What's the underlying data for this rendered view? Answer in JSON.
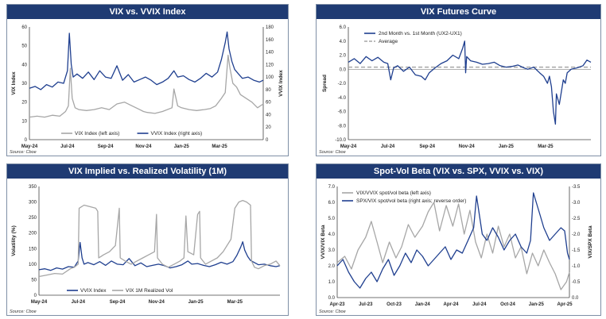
{
  "chart_data": [
    {
      "id": "p1",
      "type": "line",
      "title": "VIX vs. VVIX Index",
      "source": "Source: Cboe",
      "ylabel": "VIX Index",
      "y2label": "VVIX Index",
      "ylim": [
        0,
        60
      ],
      "y2lim": [
        0,
        180
      ],
      "yticks": [
        0,
        10,
        20,
        30,
        40,
        50,
        60
      ],
      "y2ticks": [
        0,
        20,
        40,
        60,
        80,
        100,
        120,
        140,
        160,
        180
      ],
      "xlim": [
        0,
        12.3
      ],
      "xticks": [
        {
          "x": 0,
          "label": "May-24"
        },
        {
          "x": 2,
          "label": "Jul-24"
        },
        {
          "x": 4,
          "label": "Sep-24"
        },
        {
          "x": 6,
          "label": "Nov-24"
        },
        {
          "x": 8,
          "label": "Jan-25"
        },
        {
          "x": 10,
          "label": "Mar-25"
        }
      ],
      "legend_position": "bottom",
      "series": [
        {
          "name": "VIX Index (left axis)",
          "axis": "left",
          "color": "#a6a6a6",
          "x": [
            0,
            0.4,
            0.8,
            1.2,
            1.6,
            1.9,
            2.05,
            2.15,
            2.25,
            2.4,
            2.6,
            3.0,
            3.4,
            3.8,
            4.2,
            4.6,
            5.0,
            5.4,
            5.8,
            6.0,
            6.2,
            6.6,
            7.0,
            7.5,
            7.6,
            7.8,
            8.0,
            8.4,
            8.8,
            9.2,
            9.5,
            9.8,
            10.1,
            10.3,
            10.45,
            10.55,
            10.7,
            10.9,
            11.1,
            11.4,
            11.7,
            12.0,
            12.3
          ],
          "y": [
            12,
            12.5,
            12,
            13,
            12.5,
            15,
            18,
            38,
            22,
            17,
            16,
            15.5,
            16,
            17,
            16,
            19,
            20,
            18,
            16,
            15,
            14.5,
            14,
            15,
            17,
            27,
            18,
            17,
            16,
            15.5,
            16,
            16.5,
            18,
            22,
            25,
            45,
            38,
            30,
            28,
            24,
            22,
            20,
            17,
            19
          ]
        },
        {
          "name": "VVIX Index (right axis)",
          "axis": "right",
          "color": "#1f3f8f",
          "x": [
            0,
            0.3,
            0.6,
            0.9,
            1.2,
            1.5,
            1.8,
            2.0,
            2.1,
            2.2,
            2.3,
            2.5,
            2.8,
            3.1,
            3.4,
            3.7,
            4.0,
            4.3,
            4.6,
            4.9,
            5.2,
            5.5,
            5.8,
            6.1,
            6.4,
            6.7,
            7.0,
            7.3,
            7.6,
            7.8,
            8.1,
            8.4,
            8.7,
            9.0,
            9.3,
            9.6,
            9.9,
            10.1,
            10.3,
            10.4,
            10.5,
            10.65,
            10.8,
            11.0,
            11.2,
            11.5,
            11.8,
            12.1,
            12.3
          ],
          "y": [
            82,
            85,
            80,
            88,
            84,
            92,
            90,
            110,
            170,
            120,
            100,
            105,
            98,
            108,
            96,
            110,
            100,
            98,
            118,
            95,
            104,
            92,
            96,
            100,
            95,
            88,
            92,
            98,
            110,
            100,
            102,
            96,
            92,
            98,
            106,
            100,
            108,
            128,
            155,
            172,
            145,
            125,
            112,
            105,
            98,
            100,
            95,
            92,
            95
          ]
        }
      ]
    },
    {
      "id": "p2",
      "type": "line",
      "title": "VIX Futures Curve",
      "source": "Source: Cboe",
      "ylabel": "Spread",
      "ylim": [
        -10,
        6
      ],
      "yticks": [
        -10,
        -8,
        -6,
        -4,
        -2,
        0,
        2,
        4,
        6
      ],
      "xlim": [
        0,
        12.3
      ],
      "xticks": [
        {
          "x": 0,
          "label": "May-24"
        },
        {
          "x": 2,
          "label": "Jul-24"
        },
        {
          "x": 4,
          "label": "Sep-24"
        },
        {
          "x": 6,
          "label": "Nov-24"
        },
        {
          "x": 8,
          "label": "Jan-25"
        },
        {
          "x": 10,
          "label": "Mar-25"
        }
      ],
      "legend_position": "top-center",
      "average": 0.3,
      "series": [
        {
          "name": "2nd Month vs. 1st Month (UX2-UX1)",
          "color": "#1f3f8f",
          "x": [
            0,
            0.3,
            0.6,
            0.9,
            1.2,
            1.5,
            1.8,
            2.0,
            2.15,
            2.3,
            2.5,
            2.8,
            3.1,
            3.4,
            3.7,
            3.9,
            4.1,
            4.4,
            4.7,
            5.0,
            5.3,
            5.6,
            5.8,
            5.9,
            5.95,
            6.0,
            6.2,
            6.5,
            6.8,
            7.1,
            7.4,
            7.7,
            8.0,
            8.3,
            8.6,
            8.9,
            9.1,
            9.4,
            9.7,
            9.9,
            10.1,
            10.2,
            10.3,
            10.4,
            10.5,
            10.55,
            10.7,
            10.9,
            11.0,
            11.1,
            11.3,
            11.6,
            11.9,
            12.1,
            12.3
          ],
          "y": [
            1.0,
            1.5,
            0.8,
            1.8,
            1.2,
            1.7,
            1.0,
            0.8,
            -1.5,
            0.2,
            0.5,
            -0.3,
            0.3,
            -0.8,
            -1.0,
            -1.5,
            -0.5,
            0.2,
            0.8,
            1.2,
            2.0,
            1.5,
            3.0,
            4.0,
            -0.5,
            1.8,
            1.2,
            1.0,
            0.7,
            0.8,
            1.0,
            0.5,
            0.3,
            0.4,
            0.6,
            0.2,
            0.0,
            0.3,
            -0.5,
            -1.0,
            -2.0,
            -1.0,
            -2.5,
            -6.0,
            -7.8,
            -3.5,
            -5.0,
            -1.5,
            -2.0,
            -0.5,
            0.0,
            0.2,
            0.5,
            1.3,
            1.0
          ]
        }
      ]
    },
    {
      "id": "p3",
      "type": "line",
      "title": "VIX Implied vs. Realized Volatility (1M)",
      "source": "Source: Cboe",
      "ylabel": "Volatility (%)",
      "ylim": [
        0,
        350
      ],
      "yticks": [
        0,
        50,
        100,
        150,
        200,
        250,
        300,
        350
      ],
      "xlim": [
        0,
        12.3
      ],
      "xticks": [
        {
          "x": 0,
          "label": "May-24"
        },
        {
          "x": 2,
          "label": "Jul-24"
        },
        {
          "x": 4,
          "label": "Sep-24"
        },
        {
          "x": 6,
          "label": "Nov-24"
        },
        {
          "x": 8,
          "label": "Jan-25"
        },
        {
          "x": 10,
          "label": "Mar-25"
        }
      ],
      "legend_position": "bottom",
      "series": [
        {
          "name": "VVIX Index",
          "color": "#1f3f8f",
          "x": [
            0,
            0.3,
            0.6,
            0.9,
            1.2,
            1.5,
            1.8,
            2.0,
            2.1,
            2.2,
            2.3,
            2.5,
            2.8,
            3.1,
            3.4,
            3.7,
            4.0,
            4.3,
            4.6,
            4.9,
            5.2,
            5.5,
            5.8,
            6.1,
            6.4,
            6.7,
            7.0,
            7.3,
            7.6,
            7.8,
            8.1,
            8.4,
            8.7,
            9.0,
            9.3,
            9.6,
            9.9,
            10.1,
            10.3,
            10.4,
            10.5,
            10.65,
            10.8,
            11.0,
            11.2,
            11.5,
            11.8,
            12.1,
            12.3
          ],
          "y": [
            82,
            85,
            80,
            88,
            84,
            92,
            90,
            110,
            170,
            120,
            100,
            105,
            98,
            108,
            96,
            110,
            100,
            98,
            118,
            95,
            104,
            92,
            96,
            100,
            95,
            88,
            92,
            98,
            110,
            100,
            102,
            96,
            92,
            98,
            106,
            100,
            108,
            128,
            155,
            172,
            145,
            125,
            112,
            105,
            98,
            100,
            95,
            92,
            95
          ]
        },
        {
          "name": "VIX 1M Realized Vol",
          "color": "#a6a6a6",
          "x": [
            0,
            0.4,
            0.8,
            1.2,
            1.6,
            1.8,
            2.0,
            2.05,
            2.3,
            2.6,
            2.9,
            3.0,
            3.05,
            3.3,
            3.6,
            3.9,
            4.1,
            4.15,
            4.4,
            4.7,
            5.0,
            5.3,
            5.6,
            5.9,
            6.0,
            6.05,
            6.3,
            6.6,
            6.9,
            7.2,
            7.4,
            7.5,
            7.6,
            7.9,
            8.1,
            8.2,
            8.25,
            8.5,
            8.8,
            9.1,
            9.4,
            9.8,
            10.0,
            10.2,
            10.4,
            10.6,
            10.8,
            10.85,
            11.0,
            11.2,
            11.5,
            11.8,
            12.1,
            12.3
          ],
          "y": [
            60,
            65,
            70,
            68,
            85,
            90,
            100,
            280,
            290,
            285,
            280,
            270,
            120,
            130,
            140,
            160,
            280,
            120,
            110,
            100,
            110,
            120,
            130,
            140,
            260,
            120,
            100,
            90,
            100,
            110,
            120,
            255,
            140,
            130,
            260,
            270,
            120,
            100,
            110,
            120,
            140,
            180,
            280,
            300,
            305,
            300,
            290,
            110,
            90,
            85,
            95,
            100,
            110,
            95
          ]
        }
      ]
    },
    {
      "id": "p4",
      "type": "line",
      "title": "Spot-Vol Beta (VIX vs. SPX, VVIX vs. VIX)",
      "source": "Source: Cboe",
      "ylabel": "VVIX/VIX Beta",
      "y2label": "VIX/SPX Beta",
      "ylim": [
        0,
        7
      ],
      "yticks": [
        0.0,
        1.0,
        2.0,
        3.0,
        4.0,
        5.0,
        6.0,
        7.0
      ],
      "y2lim": [
        0,
        -3.5
      ],
      "y2ticks": [
        0.0,
        -0.5,
        -1.0,
        -1.5,
        -2.0,
        -2.5,
        -3.0,
        -3.5
      ],
      "xlim": [
        0,
        24.5
      ],
      "xticks": [
        {
          "x": 0,
          "label": "Apr-23"
        },
        {
          "x": 3,
          "label": "Jul-23"
        },
        {
          "x": 6,
          "label": "Oct-23"
        },
        {
          "x": 9,
          "label": "Jan-24"
        },
        {
          "x": 12,
          "label": "Apr-24"
        },
        {
          "x": 15,
          "label": "Jul-24"
        },
        {
          "x": 18,
          "label": "Oct-24"
        },
        {
          "x": 21,
          "label": "Jan-25"
        },
        {
          "x": 24,
          "label": "Apr-25"
        }
      ],
      "legend_position": "top-left",
      "series": [
        {
          "name": "VIX/VVIX spot/vol beta (left axis)",
          "axis": "left",
          "color": "#a6a6a6",
          "x": [
            0,
            0.8,
            1.5,
            2.2,
            3.0,
            3.6,
            4.2,
            4.8,
            5.5,
            6.2,
            6.8,
            7.5,
            8.2,
            9.0,
            9.6,
            10.2,
            10.8,
            11.5,
            12.2,
            12.8,
            13.4,
            14.0,
            14.6,
            15.2,
            15.8,
            16.4,
            17.0,
            17.6,
            18.2,
            18.8,
            19.4,
            20.0,
            20.6,
            21.2,
            21.8,
            22.4,
            23.0,
            23.6,
            24.2,
            24.5
          ],
          "y": [
            2.2,
            2.6,
            1.8,
            3.0,
            3.8,
            4.8,
            3.5,
            2.2,
            3.5,
            2.5,
            3.2,
            4.6,
            3.8,
            4.5,
            5.4,
            6.0,
            4.2,
            5.8,
            4.5,
            5.9,
            4.0,
            5.5,
            3.5,
            2.5,
            4.0,
            2.8,
            4.5,
            3.2,
            4.0,
            2.5,
            3.2,
            1.5,
            2.8,
            2.0,
            3.0,
            2.2,
            1.5,
            0.5,
            1.0,
            1.6
          ]
        },
        {
          "name": "SPX/VIX spot/vol beta (right axis; reverse order)",
          "axis": "right",
          "color": "#1f3f8f",
          "x": [
            0,
            0.6,
            1.2,
            1.8,
            2.4,
            3.0,
            3.6,
            4.2,
            4.8,
            5.4,
            6.0,
            6.6,
            7.2,
            7.8,
            8.4,
            9.0,
            9.6,
            10.2,
            10.8,
            11.4,
            12.0,
            12.6,
            13.2,
            13.8,
            14.4,
            14.7,
            15.0,
            15.3,
            15.8,
            16.4,
            17.0,
            17.6,
            18.2,
            18.8,
            19.4,
            20.0,
            20.4,
            20.7,
            21.0,
            21.4,
            21.8,
            22.4,
            23.0,
            23.6,
            24.0,
            24.3,
            24.5
          ],
          "y": [
            -1.0,
            -1.2,
            -0.8,
            -0.5,
            -0.3,
            -0.6,
            -0.8,
            -0.5,
            -0.9,
            -1.2,
            -0.7,
            -1.0,
            -1.4,
            -1.1,
            -1.5,
            -1.3,
            -1.0,
            -1.2,
            -1.4,
            -1.6,
            -1.2,
            -1.5,
            -1.4,
            -1.8,
            -2.2,
            -3.2,
            -2.6,
            -2.0,
            -1.8,
            -2.2,
            -1.9,
            -1.5,
            -1.8,
            -2.0,
            -1.6,
            -1.4,
            -1.8,
            -3.3,
            -3.0,
            -2.6,
            -2.2,
            -1.8,
            -2.0,
            -2.2,
            -2.1,
            -1.4,
            -1.2
          ]
        }
      ]
    }
  ]
}
